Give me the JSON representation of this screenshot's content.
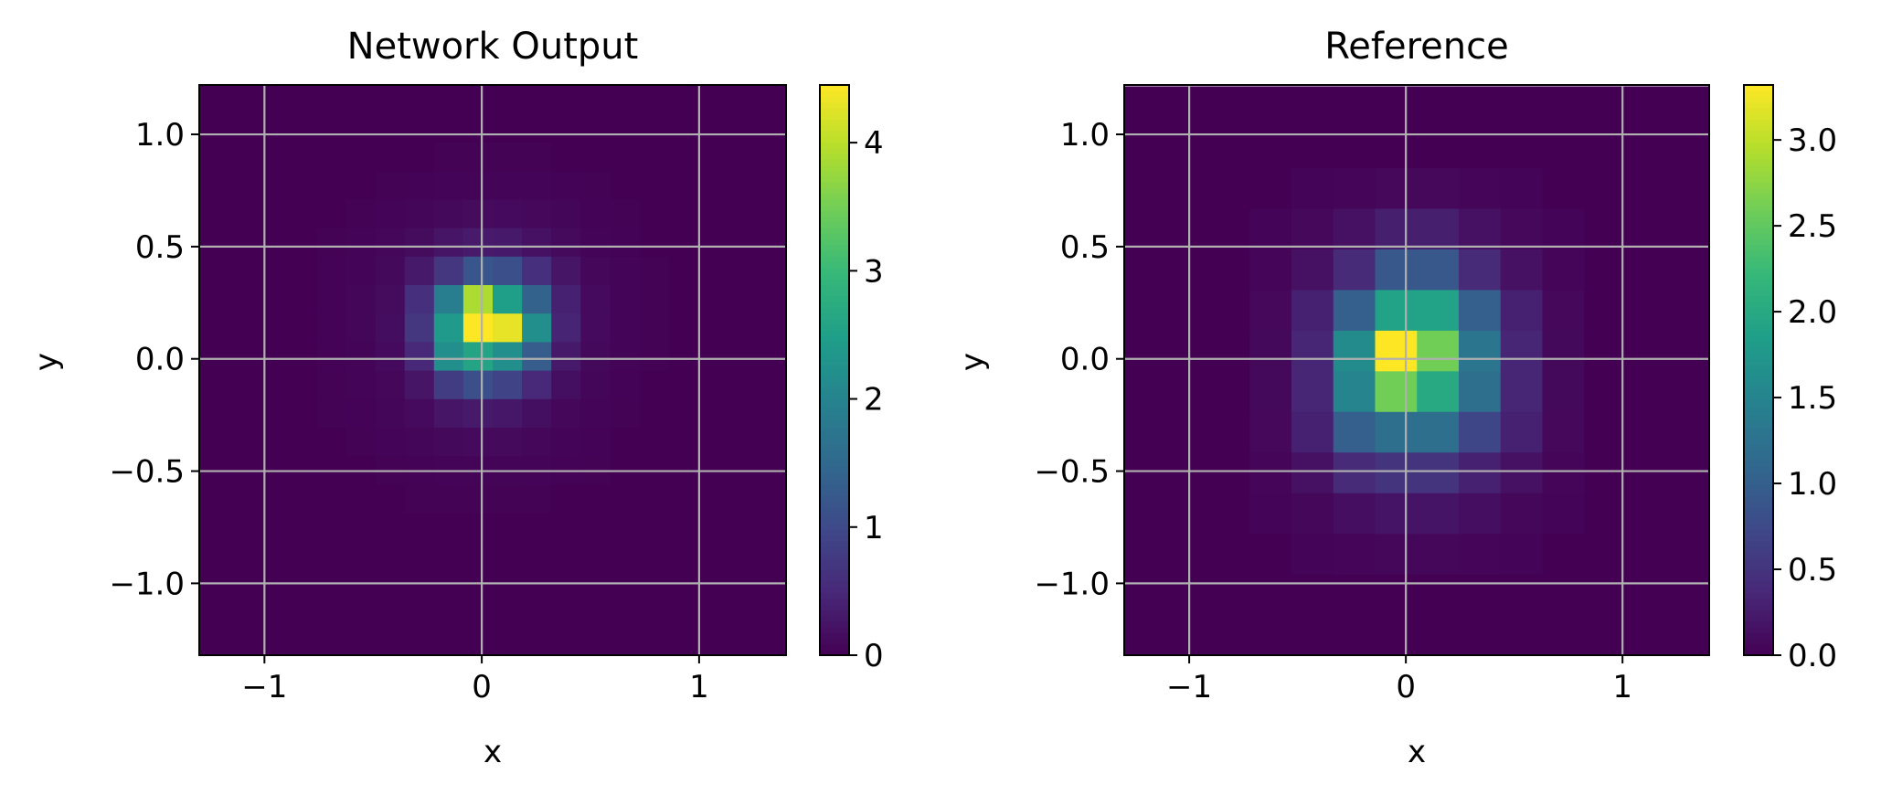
{
  "chart_data": [
    {
      "type": "heatmap",
      "title": "Network Output",
      "xlabel": "x",
      "ylabel": "y",
      "xlim": [
        -1.3,
        1.4
      ],
      "ylim": [
        -1.32,
        1.22
      ],
      "xticks": [
        {
          "v": -1,
          "label": "−1"
        },
        {
          "v": 0,
          "label": "0"
        },
        {
          "v": 1,
          "label": "1"
        }
      ],
      "yticks": [
        {
          "v": 1.0,
          "label": "1.0"
        },
        {
          "v": 0.5,
          "label": "0.5"
        },
        {
          "v": 0.0,
          "label": "0.0"
        },
        {
          "v": -0.5,
          "label": "−0.5"
        },
        {
          "v": -1.0,
          "label": "−1.0"
        }
      ],
      "grid": true,
      "colormap": "viridis",
      "colorbar": {
        "min": 0,
        "max": 4.45,
        "ticks": [
          {
            "v": 0,
            "label": "0"
          },
          {
            "v": 1,
            "label": "1"
          },
          {
            "v": 2,
            "label": "2"
          },
          {
            "v": 3,
            "label": "3"
          },
          {
            "v": 4,
            "label": "4"
          }
        ]
      },
      "grid_data": {
        "x0": -1.3,
        "y0": -1.32,
        "nx": 20,
        "ny": 20,
        "dx": 0.135,
        "dy": 0.127,
        "values": [
          [
            0,
            0,
            0,
            0,
            0,
            0,
            0,
            0,
            0,
            0,
            0,
            0,
            0,
            0,
            0,
            0,
            0,
            0,
            0,
            0
          ],
          [
            0,
            0,
            0,
            0,
            0,
            0,
            0,
            0,
            0,
            0,
            0,
            0,
            0,
            0,
            0,
            0,
            0,
            0,
            0,
            0
          ],
          [
            0,
            0,
            0,
            0,
            0,
            0,
            0,
            0,
            0.02,
            0.02,
            0.02,
            0.02,
            0,
            0,
            0,
            0,
            0,
            0,
            0,
            0
          ],
          [
            0,
            0,
            0,
            0,
            0,
            0,
            0.02,
            0.03,
            0.04,
            0.05,
            0.05,
            0.04,
            0.03,
            0.02,
            0,
            0,
            0,
            0,
            0,
            0
          ],
          [
            0,
            0,
            0,
            0,
            0,
            0.02,
            0.04,
            0.06,
            0.1,
            0.13,
            0.12,
            0.09,
            0.06,
            0.03,
            0.02,
            0,
            0,
            0,
            0,
            0
          ],
          [
            0,
            0,
            0,
            0,
            0.02,
            0.04,
            0.07,
            0.14,
            0.25,
            0.32,
            0.3,
            0.2,
            0.11,
            0.05,
            0.03,
            0,
            0,
            0,
            0,
            0
          ],
          [
            0,
            0,
            0,
            0,
            0.03,
            0.05,
            0.1,
            0.3,
            0.7,
            1.2,
            1.1,
            0.6,
            0.25,
            0.08,
            0.04,
            0.02,
            0,
            0,
            0,
            0
          ],
          [
            0,
            0,
            0,
            0,
            0.03,
            0.06,
            0.14,
            0.6,
            1.9,
            3.9,
            2.5,
            1.4,
            0.4,
            0.12,
            0.05,
            0.02,
            0,
            0,
            0,
            0
          ],
          [
            0,
            0,
            0,
            0,
            0.03,
            0.06,
            0.15,
            0.7,
            2.4,
            4.45,
            4.3,
            2.2,
            0.45,
            0.12,
            0.05,
            0.02,
            0,
            0,
            0,
            0
          ],
          [
            0,
            0,
            0,
            0,
            0.03,
            0.05,
            0.12,
            0.5,
            2.2,
            2.6,
            2.2,
            1.3,
            0.3,
            0.1,
            0.04,
            0.02,
            0,
            0,
            0,
            0
          ],
          [
            0,
            0,
            0,
            0,
            0.02,
            0.04,
            0.08,
            0.25,
            0.8,
            1.1,
            0.9,
            0.5,
            0.18,
            0.06,
            0.03,
            0,
            0,
            0,
            0,
            0
          ],
          [
            0,
            0,
            0,
            0,
            0.02,
            0.03,
            0.06,
            0.12,
            0.25,
            0.3,
            0.28,
            0.18,
            0.08,
            0.04,
            0.02,
            0,
            0,
            0,
            0,
            0
          ],
          [
            0,
            0,
            0,
            0,
            0,
            0.02,
            0.04,
            0.06,
            0.1,
            0.12,
            0.11,
            0.08,
            0.05,
            0.03,
            0,
            0,
            0,
            0,
            0,
            0
          ],
          [
            0,
            0,
            0,
            0,
            0,
            0,
            0.02,
            0.03,
            0.04,
            0.05,
            0.05,
            0.04,
            0.03,
            0.02,
            0,
            0,
            0,
            0,
            0,
            0
          ],
          [
            0,
            0,
            0,
            0,
            0,
            0,
            0,
            0.02,
            0.02,
            0.02,
            0.02,
            0.02,
            0,
            0,
            0,
            0,
            0,
            0,
            0,
            0
          ],
          [
            0,
            0,
            0,
            0,
            0,
            0,
            0,
            0,
            0,
            0,
            0,
            0,
            0,
            0,
            0,
            0,
            0,
            0,
            0,
            0
          ],
          [
            0,
            0,
            0,
            0,
            0,
            0,
            0,
            0,
            0,
            0,
            0,
            0,
            0,
            0,
            0,
            0,
            0,
            0,
            0,
            0
          ],
          [
            0,
            0,
            0,
            0,
            0,
            0,
            0,
            0,
            0,
            0,
            0,
            0,
            0,
            0,
            0,
            0,
            0,
            0,
            0,
            0
          ],
          [
            0,
            0,
            0,
            0,
            0,
            0,
            0,
            0,
            0,
            0,
            0,
            0,
            0,
            0,
            0,
            0,
            0,
            0,
            0,
            0
          ],
          [
            0,
            0,
            0,
            0,
            0,
            0,
            0,
            0,
            0,
            0,
            0,
            0,
            0,
            0,
            0,
            0,
            0,
            0,
            0,
            0
          ]
        ]
      }
    },
    {
      "type": "heatmap",
      "title": "Reference",
      "xlabel": "x",
      "ylabel": "y",
      "xlim": [
        -1.3,
        1.4
      ],
      "ylim": [
        -1.32,
        1.22
      ],
      "xticks": [
        {
          "v": -1,
          "label": "−1"
        },
        {
          "v": 0,
          "label": "0"
        },
        {
          "v": 1,
          "label": "1"
        }
      ],
      "yticks": [
        {
          "v": 1.0,
          "label": "1.0"
        },
        {
          "v": 0.5,
          "label": "0.5"
        },
        {
          "v": 0.0,
          "label": "0.0"
        },
        {
          "v": -0.5,
          "label": "−0.5"
        },
        {
          "v": -1.0,
          "label": "−1.0"
        }
      ],
      "grid": true,
      "colormap": "viridis",
      "colorbar": {
        "min": 0,
        "max": 3.32,
        "ticks": [
          {
            "v": 0.0,
            "label": "0.0"
          },
          {
            "v": 0.5,
            "label": "0.5"
          },
          {
            "v": 1.0,
            "label": "1.0"
          },
          {
            "v": 1.5,
            "label": "1.5"
          },
          {
            "v": 2.0,
            "label": "2.0"
          },
          {
            "v": 2.5,
            "label": "2.5"
          },
          {
            "v": 3.0,
            "label": "3.0"
          }
        ]
      },
      "grid_data": {
        "x0": -1.3,
        "y0": -1.32,
        "nx": 14,
        "ny": 14,
        "dx": 0.193,
        "dy": 0.181,
        "values": [
          [
            0,
            0,
            0,
            0,
            0,
            0,
            0,
            0,
            0,
            0,
            0,
            0,
            0,
            0
          ],
          [
            0,
            0,
            0,
            0,
            0,
            0,
            0,
            0,
            0,
            0,
            0,
            0,
            0,
            0
          ],
          [
            0,
            0,
            0,
            0,
            0.03,
            0.05,
            0.07,
            0.07,
            0.05,
            0.03,
            0,
            0,
            0,
            0
          ],
          [
            0,
            0,
            0,
            0.03,
            0.07,
            0.15,
            0.28,
            0.28,
            0.15,
            0.07,
            0.03,
            0,
            0,
            0
          ],
          [
            0,
            0,
            0,
            0.05,
            0.15,
            0.4,
            0.9,
            0.9,
            0.4,
            0.15,
            0.05,
            0,
            0,
            0
          ],
          [
            0,
            0,
            0,
            0.07,
            0.3,
            1.0,
            1.9,
            1.9,
            1.0,
            0.3,
            0.07,
            0,
            0,
            0
          ],
          [
            0,
            0,
            0,
            0.08,
            0.35,
            1.6,
            3.32,
            2.6,
            1.3,
            0.35,
            0.08,
            0,
            0,
            0
          ],
          [
            0,
            0,
            0,
            0.08,
            0.35,
            1.5,
            2.6,
            2.0,
            1.2,
            0.35,
            0.08,
            0,
            0,
            0
          ],
          [
            0,
            0,
            0,
            0.07,
            0.3,
            1.0,
            1.2,
            1.2,
            0.7,
            0.3,
            0.07,
            0,
            0,
            0
          ],
          [
            0,
            0,
            0,
            0.05,
            0.15,
            0.4,
            0.5,
            0.5,
            0.3,
            0.15,
            0.05,
            0,
            0,
            0
          ],
          [
            0,
            0,
            0,
            0.03,
            0.06,
            0.12,
            0.18,
            0.18,
            0.12,
            0.06,
            0.03,
            0,
            0,
            0
          ],
          [
            0,
            0,
            0,
            0,
            0.03,
            0.05,
            0.06,
            0.06,
            0.05,
            0.03,
            0,
            0,
            0,
            0
          ],
          [
            0,
            0,
            0,
            0,
            0,
            0,
            0,
            0,
            0,
            0,
            0,
            0,
            0,
            0
          ],
          [
            0,
            0,
            0,
            0,
            0,
            0,
            0,
            0,
            0,
            0,
            0,
            0,
            0,
            0
          ]
        ]
      }
    }
  ]
}
